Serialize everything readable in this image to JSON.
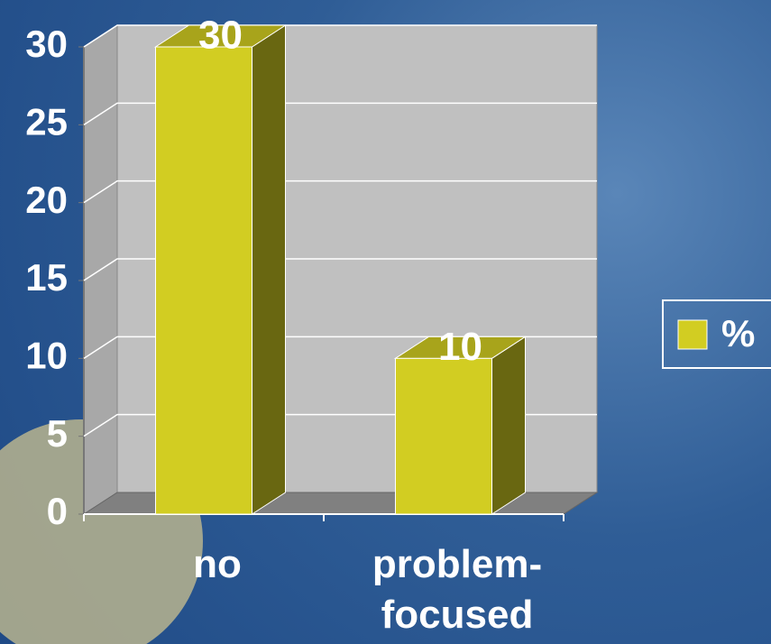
{
  "chart_data": {
    "type": "bar3d",
    "categories": [
      "no",
      "problem-focused"
    ],
    "series": [
      {
        "name": "%",
        "color": "#d2cd22",
        "values": [
          30,
          10
        ]
      }
    ],
    "ylim": [
      0,
      30
    ],
    "yticks": [
      0,
      5,
      10,
      15,
      20,
      25,
      30
    ],
    "grid": true,
    "legend": "right"
  }
}
